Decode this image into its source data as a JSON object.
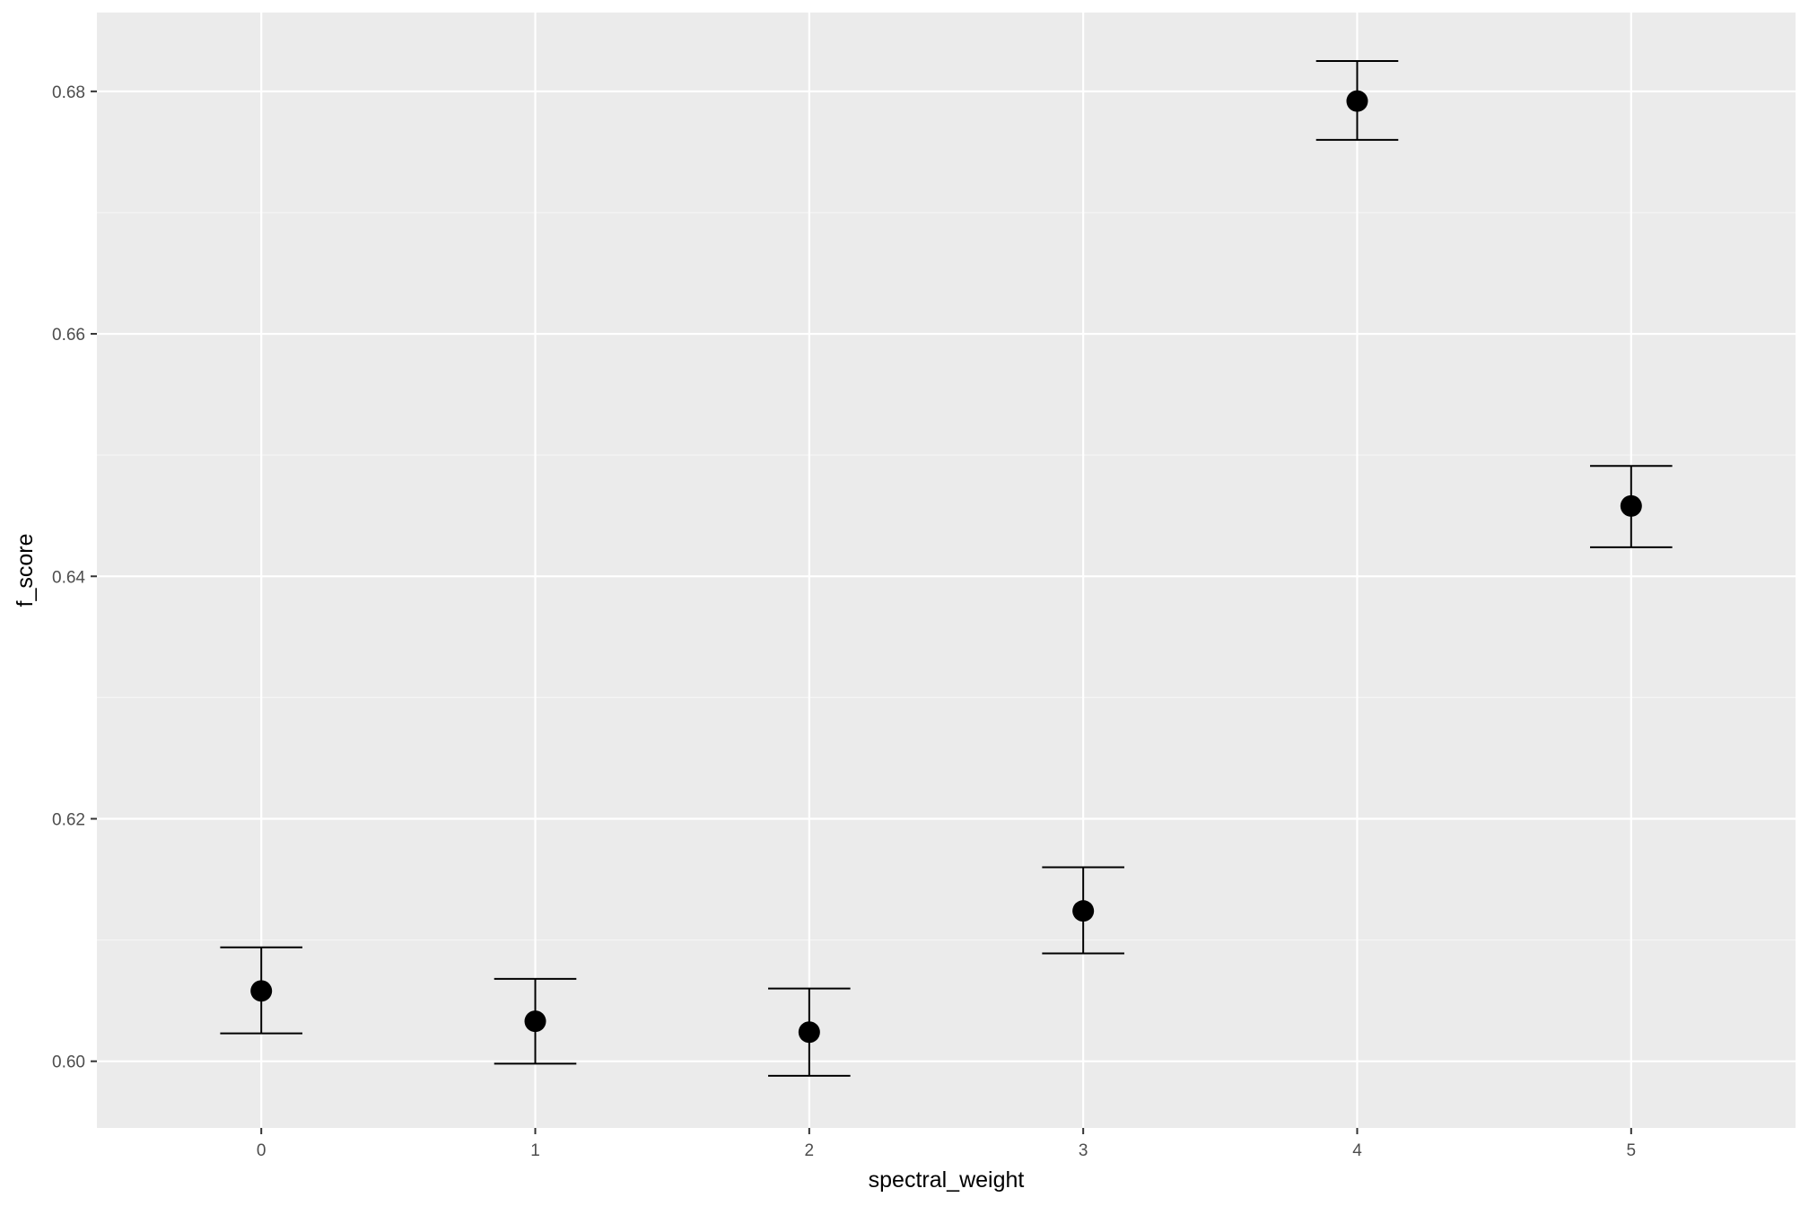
{
  "chart_data": {
    "type": "scatter",
    "xlabel": "spectral_weight",
    "ylabel": "f_score",
    "xlim": [
      -0.6,
      5.6
    ],
    "ylim": [
      0.5945,
      0.6865
    ],
    "x_ticks": [
      0,
      1,
      2,
      3,
      4,
      5
    ],
    "x_tick_labels": [
      "0",
      "1",
      "2",
      "3",
      "4",
      "5"
    ],
    "y_ticks": [
      0.6,
      0.62,
      0.64,
      0.66,
      0.68
    ],
    "y_tick_labels": [
      "0.60",
      "0.62",
      "0.64",
      "0.66",
      "0.68"
    ],
    "grid": true,
    "legend": "none",
    "series": [
      {
        "x": [
          0,
          1,
          2,
          3,
          4,
          5
        ],
        "y": [
          0.6058,
          0.6033,
          0.6024,
          0.6124,
          0.6792,
          0.6458
        ],
        "ymin": [
          0.6023,
          0.5998,
          0.5988,
          0.6089,
          0.676,
          0.6424
        ],
        "ymax": [
          0.6094,
          0.6068,
          0.606,
          0.616,
          0.6825,
          0.6491
        ]
      }
    ],
    "colors": {
      "panel_background": "#ebebeb",
      "grid_major": "#ffffff",
      "grid_minor": "#f5f5f5",
      "point": "#000000",
      "errorbar": "#000000",
      "tick_text": "#4d4d4d",
      "axis_ticks": "#333333"
    }
  }
}
